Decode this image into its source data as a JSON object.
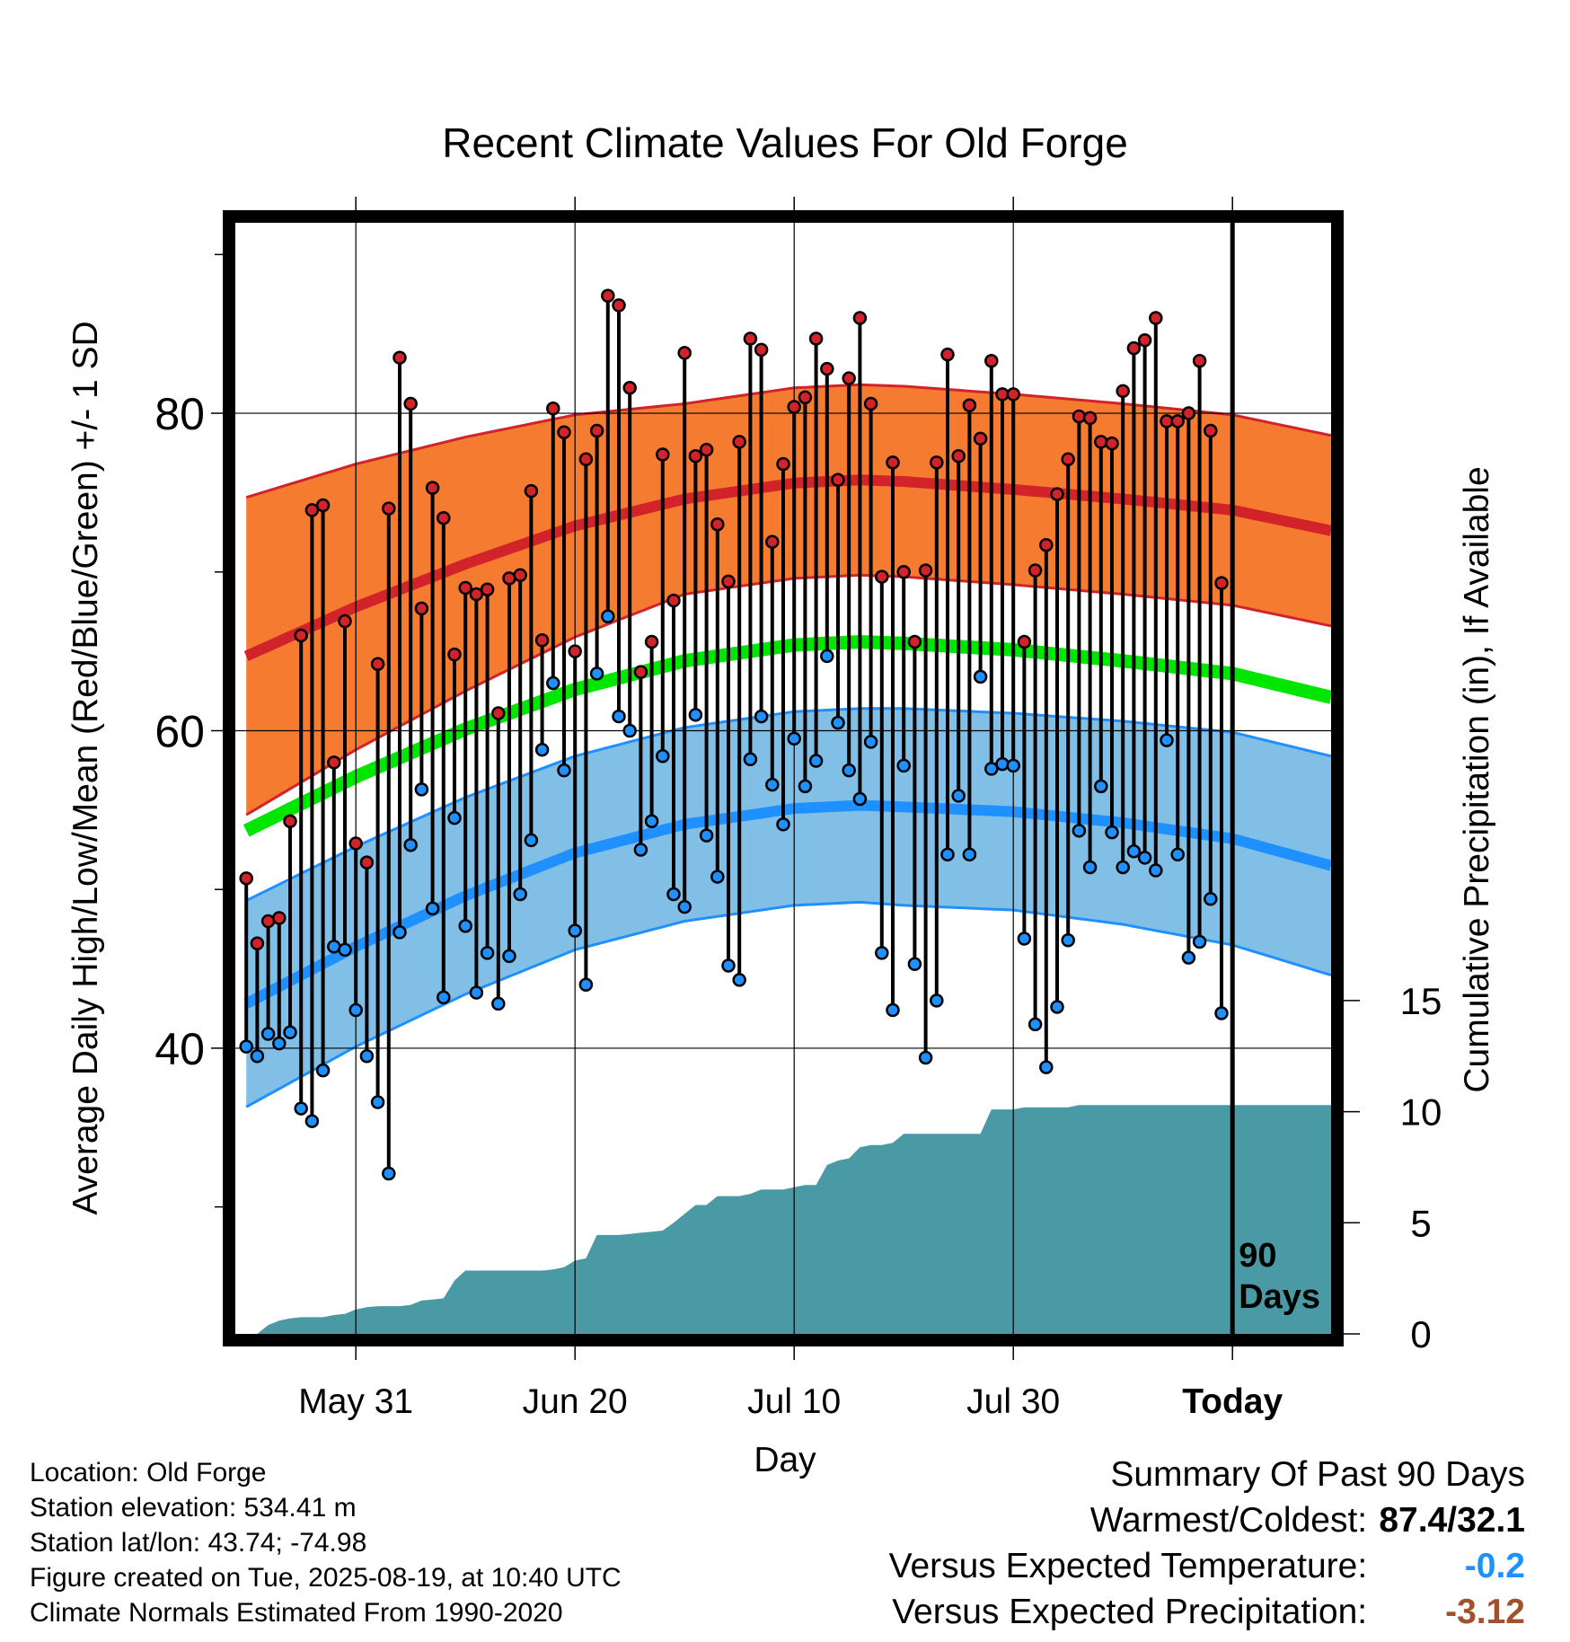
{
  "chart_data": {
    "type": "line",
    "title": "Recent Climate Values For Old Forge",
    "xlabel": "Day",
    "ylabel": "Average Daily High/Low/Mean (Red/Blue/Green) +/- 1 SD",
    "y2label": "Cumulative Precipitation (in), If Available",
    "x_ticks": [
      "May 31",
      "Jun 20",
      "Jul 10",
      "Jul 30",
      "Today"
    ],
    "x_tick_days": [
      10,
      30,
      50,
      70,
      90
    ],
    "xlim": [
      -1,
      99
    ],
    "ylim": [
      22,
      92
    ],
    "y_ticks": [
      40,
      60,
      80
    ],
    "y_minor_ticks": [
      30,
      50,
      70,
      90
    ],
    "y2lim": [
      0,
      50
    ],
    "y2_ticks": [
      0,
      5,
      10,
      15
    ],
    "today_label": "90 Days",
    "grid": true,
    "colors": {
      "high": "#d2232a",
      "high_band": "#f47b30",
      "low": "#1e90ff",
      "low_band": "#82bfe6",
      "mean": "#00e600",
      "precip": "#4a9aa5",
      "today_line": "#000000"
    },
    "normal_high": {
      "x": [
        0,
        10,
        20,
        30,
        40,
        50,
        56,
        60,
        70,
        80,
        90,
        99
      ],
      "mean": [
        64.7,
        67.8,
        70.5,
        72.9,
        74.6,
        75.6,
        75.8,
        75.7,
        75.2,
        74.6,
        73.9,
        72.6
      ],
      "sd": [
        10,
        9,
        8,
        7,
        6,
        6,
        6,
        6,
        6,
        6,
        6,
        6
      ]
    },
    "normal_low": {
      "x": [
        0,
        10,
        20,
        30,
        40,
        50,
        56,
        60,
        70,
        80,
        90,
        99
      ],
      "mean": [
        42.8,
        46.4,
        49.6,
        52.3,
        54.1,
        55.1,
        55.3,
        55.2,
        54.9,
        54.2,
        53.2,
        51.5
      ],
      "sd": [
        6.5,
        6.3,
        6.2,
        6.1,
        6.1,
        6.1,
        6.1,
        6.2,
        6.2,
        6.4,
        6.7,
        6.9
      ]
    },
    "normal_mean": {
      "x": [
        0,
        10,
        20,
        30,
        40,
        50,
        56,
        60,
        70,
        80,
        90,
        99
      ],
      "values": [
        53.7,
        57.1,
        60.1,
        62.6,
        64.4,
        65.4,
        65.6,
        65.5,
        65.1,
        64.4,
        63.6,
        62.1
      ]
    },
    "daily": {
      "day": [
        0,
        1,
        2,
        3,
        4,
        5,
        6,
        7,
        8,
        9,
        10,
        11,
        12,
        13,
        14,
        15,
        16,
        17,
        18,
        19,
        20,
        21,
        22,
        23,
        24,
        25,
        26,
        27,
        28,
        29,
        30,
        31,
        32,
        33,
        34,
        35,
        36,
        37,
        38,
        39,
        40,
        41,
        42,
        43,
        44,
        45,
        46,
        47,
        48,
        49,
        50,
        51,
        52,
        53,
        54,
        55,
        56,
        57,
        58,
        59,
        60,
        61,
        62,
        63,
        64,
        65,
        66,
        67,
        68,
        69,
        70,
        71,
        72,
        73,
        74,
        75,
        76,
        77,
        78,
        79,
        80,
        81,
        82,
        83,
        84,
        85,
        86,
        87,
        88,
        89
      ],
      "high": [
        50.7,
        46.6,
        48.0,
        48.2,
        54.3,
        66.0,
        73.9,
        74.2,
        58.0,
        66.9,
        52.9,
        51.7,
        64.2,
        74.0,
        83.5,
        80.6,
        67.7,
        75.3,
        73.4,
        64.8,
        69.0,
        68.6,
        68.9,
        61.1,
        69.6,
        69.8,
        75.1,
        65.7,
        80.3,
        78.8,
        65.0,
        77.1,
        78.9,
        87.4,
        86.8,
        81.6,
        63.7,
        65.6,
        77.4,
        68.2,
        83.8,
        77.3,
        77.7,
        73.0,
        69.4,
        78.2,
        84.7,
        84.0,
        71.9,
        76.8,
        80.4,
        81.0,
        84.7,
        82.8,
        75.8,
        82.2,
        86.0,
        80.6,
        69.7,
        76.9,
        70.0,
        65.6,
        70.1,
        76.9,
        83.7,
        77.3,
        80.5,
        78.4,
        83.3,
        81.2,
        81.2,
        65.6,
        70.1,
        71.7,
        74.9,
        77.1,
        79.8,
        79.7,
        78.2,
        78.1,
        81.4,
        84.1,
        84.6,
        86.0,
        79.5,
        79.5,
        80.0,
        83.3,
        78.9,
        69.3
      ],
      "low": [
        40.1,
        39.5,
        40.9,
        40.3,
        41.0,
        36.2,
        35.4,
        38.6,
        46.4,
        46.2,
        42.4,
        39.5,
        36.6,
        32.1,
        47.3,
        52.8,
        56.3,
        48.8,
        43.2,
        54.5,
        47.7,
        43.5,
        46.0,
        42.8,
        45.8,
        49.7,
        53.1,
        58.8,
        63.0,
        57.5,
        47.4,
        44.0,
        63.6,
        67.2,
        60.9,
        60.0,
        52.5,
        54.3,
        58.4,
        49.7,
        48.9,
        61.0,
        53.4,
        50.8,
        45.2,
        44.3,
        58.2,
        60.9,
        56.6,
        54.1,
        59.5,
        56.5,
        58.1,
        64.7,
        60.5,
        57.5,
        55.7,
        59.3,
        46.0,
        42.4,
        57.8,
        45.3,
        39.4,
        43.0,
        52.2,
        55.9,
        52.2,
        63.4,
        57.6,
        57.9,
        57.8,
        46.9,
        41.5,
        38.8,
        42.6,
        46.8,
        53.7,
        51.4,
        56.5,
        53.6,
        51.4,
        52.4,
        52.0,
        51.2,
        59.4,
        52.2,
        45.7,
        46.7,
        49.4,
        42.2
      ]
    },
    "precip_cumulative": {
      "day": [
        0,
        1,
        2,
        3,
        4,
        5,
        6,
        7,
        8,
        9,
        10,
        11,
        12,
        13,
        14,
        15,
        16,
        17,
        18,
        19,
        20,
        21,
        22,
        23,
        24,
        25,
        26,
        27,
        28,
        29,
        30,
        31,
        32,
        33,
        34,
        35,
        36,
        37,
        38,
        39,
        40,
        41,
        42,
        43,
        44,
        45,
        46,
        47,
        48,
        49,
        50,
        51,
        52,
        53,
        54,
        55,
        56,
        57,
        58,
        59,
        60,
        61,
        62,
        63,
        64,
        65,
        66,
        67,
        68,
        69,
        70,
        71,
        72,
        73,
        74,
        75,
        76,
        77,
        78,
        79,
        80,
        81,
        82,
        83,
        84,
        85,
        86,
        87,
        88,
        89,
        90,
        99
      ],
      "values": [
        0,
        0,
        0.4,
        0.6,
        0.7,
        0.75,
        0.75,
        0.75,
        0.85,
        0.9,
        1.1,
        1.2,
        1.25,
        1.25,
        1.25,
        1.3,
        1.5,
        1.55,
        1.6,
        2.4,
        2.85,
        2.85,
        2.85,
        2.85,
        2.85,
        2.85,
        2.85,
        2.85,
        2.9,
        3.0,
        3.3,
        3.4,
        4.45,
        4.45,
        4.45,
        4.5,
        4.55,
        4.6,
        4.65,
        5.0,
        5.4,
        5.8,
        5.8,
        6.2,
        6.2,
        6.2,
        6.3,
        6.5,
        6.5,
        6.5,
        6.6,
        6.7,
        6.7,
        7.6,
        7.8,
        7.9,
        8.4,
        8.5,
        8.5,
        8.6,
        9.0,
        9.0,
        9.0,
        9.0,
        9.0,
        9.0,
        9.0,
        9.0,
        10.1,
        10.1,
        10.1,
        10.2,
        10.2,
        10.2,
        10.2,
        10.2,
        10.3,
        10.3,
        10.3,
        10.3,
        10.3,
        10.3,
        10.3,
        10.3,
        10.3,
        10.3,
        10.3,
        10.3,
        10.3,
        10.3,
        10.3,
        10.3
      ]
    }
  },
  "info": {
    "location": "Location: Old Forge",
    "elevation": "Station elevation: 534.41 m",
    "latlon": "Station lat/lon: 43.74; -74.98",
    "created": "Figure created on Tue, 2025-08-19, at 10:40 UTC",
    "normals": "Climate Normals Estimated From 1990-2020"
  },
  "summary": {
    "title": "Summary Of Past 90 Days",
    "warmest_label": "Warmest/Coldest:",
    "warmest_value": "87.4/32.1",
    "temp_label": "Versus Expected Temperature:",
    "temp_value": "-0.2",
    "temp_color": "#1e90ff",
    "precip_label": "Versus Expected Precipitation:",
    "precip_value": "-3.12",
    "precip_color": "#a0522d"
  }
}
